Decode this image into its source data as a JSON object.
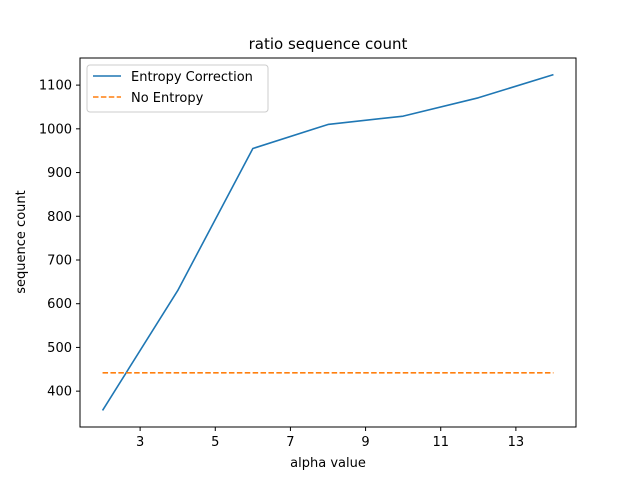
{
  "chart_data": {
    "type": "line",
    "title": "ratio sequence count",
    "xlabel": "alpha value",
    "ylabel": "sequence count",
    "xlim": [
      1.4,
      14.6
    ],
    "ylim": [
      318,
      1162
    ],
    "xticks": [
      3,
      5,
      7,
      9,
      11,
      13
    ],
    "yticks": [
      400,
      500,
      600,
      700,
      800,
      900,
      1000,
      1100
    ],
    "grid": false,
    "legend_position": "top-left",
    "series": [
      {
        "name": "Entropy Correction",
        "style": "solid",
        "color": "#1f77b4",
        "x": [
          2,
          4,
          6,
          8,
          10,
          12,
          14
        ],
        "y": [
          356,
          630,
          955,
          1010,
          1029,
          1071,
          1124
        ]
      },
      {
        "name": "No Entropy",
        "style": "dashed",
        "color": "#ff7f0e",
        "x": [
          2,
          4,
          6,
          8,
          10,
          12,
          14
        ],
        "y": [
          442,
          442,
          442,
          442,
          442,
          442,
          442
        ]
      }
    ]
  }
}
